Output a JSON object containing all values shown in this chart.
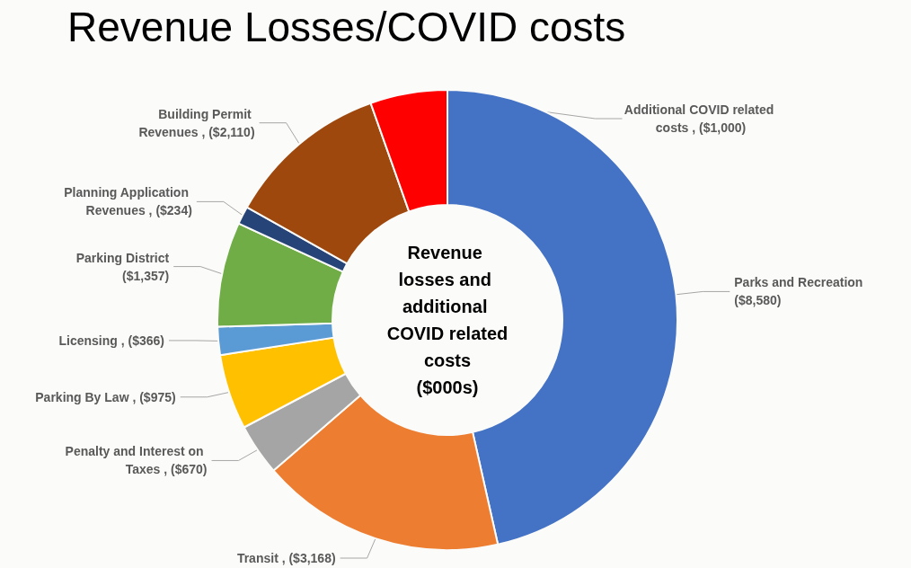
{
  "chart_data": {
    "type": "donut",
    "title": "Revenue Losses/COVID costs",
    "categories": [
      "Parks and Recreation",
      "Transit",
      "Penalty and Interest on Taxes",
      "Parking By Law",
      "Licensing",
      "Parking District",
      "Planning Application Revenues",
      "Building Permit Revenues",
      "Additional COVID related costs"
    ],
    "values": [
      8580,
      3168,
      670,
      975,
      366,
      1357,
      234,
      2110,
      1000
    ],
    "value_labels": [
      "($8,580)",
      "($3,168)",
      "($670)",
      "($975)",
      "($366)",
      "($1,357)",
      "($234)",
      "($2,110)",
      "($1,000)"
    ],
    "colors": [
      "#4472c4",
      "#ed7d31",
      "#a5a5a5",
      "#ffc000",
      "#5b9bd5",
      "#70ad47",
      "#264478",
      "#9e480e",
      "#ff0000"
    ],
    "annotations": [
      "Revenue losses and additional COVID related costs ($000s)"
    ],
    "legend": false
  }
}
